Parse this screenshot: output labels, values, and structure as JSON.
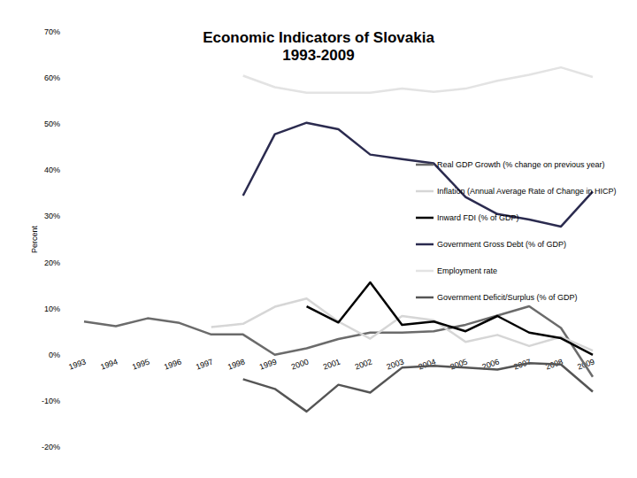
{
  "chart_data": {
    "type": "line",
    "title": "Economic Indicators of Slovakia",
    "subtitle": "1993-2009",
    "y_label": "Percent",
    "categories": [
      "1993",
      "1994",
      "1995",
      "1996",
      "1997",
      "1998",
      "1999",
      "2000",
      "2001",
      "2002",
      "2003",
      "2004",
      "2005",
      "2006",
      "2007",
      "2008",
      "2009"
    ],
    "series": [
      {
        "name": "Real GDP Growth (% change on previous year)",
        "color": "#6b6b6b",
        "values": [
          7.2,
          6.2,
          7.9,
          6.9,
          4.4,
          4.4,
          0.0,
          1.4,
          3.4,
          4.8,
          4.8,
          5.1,
          6.5,
          8.5,
          10.5,
          5.8,
          -4.8
        ]
      },
      {
        "name": "Inflation (Annual Average Rate of Change in HICP)",
        "color": "#d6d6d6",
        "values": [
          null,
          null,
          null,
          null,
          6.0,
          6.7,
          10.4,
          12.2,
          7.2,
          3.5,
          8.4,
          7.5,
          2.8,
          4.3,
          1.9,
          3.9,
          0.9
        ]
      },
      {
        "name": "Inward FDI (% of GDP)",
        "color": "#000000",
        "values": [
          null,
          null,
          null,
          null,
          null,
          null,
          null,
          10.5,
          7.0,
          15.7,
          6.5,
          7.2,
          5.1,
          8.4,
          4.8,
          3.6,
          0.0
        ]
      },
      {
        "name": "Government Gross Debt (% of GDP)",
        "color": "#2b2b4f",
        "values": [
          null,
          null,
          null,
          null,
          null,
          34.5,
          47.8,
          50.3,
          48.9,
          43.4,
          42.4,
          41.5,
          34.2,
          30.5,
          29.3,
          27.8,
          35.4
        ]
      },
      {
        "name": "Employment rate",
        "color": "#e3e3e3",
        "values": [
          null,
          null,
          null,
          null,
          null,
          60.5,
          58.0,
          56.8,
          56.8,
          56.8,
          57.7,
          57.0,
          57.7,
          59.4,
          60.7,
          62.3,
          60.2
        ]
      },
      {
        "name": "Government Deficit/Surplus (% of GDP)",
        "color": "#555555",
        "values": [
          null,
          null,
          null,
          null,
          null,
          -5.3,
          -7.4,
          -12.3,
          -6.5,
          -8.2,
          -2.8,
          -2.4,
          -2.8,
          -3.2,
          -1.8,
          -2.1,
          -8.0
        ]
      }
    ],
    "ylim": [
      -20,
      70
    ],
    "yticks": [
      {
        "value": -20,
        "label": "-20%"
      },
      {
        "value": -10,
        "label": "-10%"
      },
      {
        "value": 0,
        "label": "0%"
      },
      {
        "value": 10,
        "label": "10%"
      },
      {
        "value": 20,
        "label": "20%"
      },
      {
        "value": 30,
        "label": "30%"
      },
      {
        "value": 40,
        "label": "40%"
      },
      {
        "value": 50,
        "label": "50%"
      },
      {
        "value": 60,
        "label": "60%"
      },
      {
        "value": 70,
        "label": "70%"
      }
    ],
    "grid": false,
    "legend": "right"
  }
}
